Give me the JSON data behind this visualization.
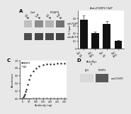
{
  "fig_bg": "#e8e8e8",
  "panel_bg": "#ffffff",
  "panel_A": {
    "label": "A",
    "lane_labels": [
      "IgG\nAb",
      "ChIP\nAb",
      "IgG\nAb",
      "ChIP\nAb"
    ],
    "group_label_left": "Ctrl",
    "group_label_right": "FOXP3",
    "band1_label": "anti-FOXP3",
    "band2_label": "anti-ACTIN",
    "row1_alphas": [
      0.25,
      0.45,
      0.3,
      0.55
    ],
    "row2_alphas": [
      0.7,
      0.72,
      0.71,
      0.73
    ]
  },
  "panel_B": {
    "label": "B",
    "title": "Anti-FOXP3 ChIP",
    "values": [
      0.38,
      0.2,
      0.32,
      0.1
    ],
    "errors": [
      0.05,
      0.02,
      0.04,
      0.01
    ],
    "bar_color": "#111111",
    "ylabel": "% Input",
    "xtick_labels": [
      "Ctrl/\nIgG",
      "Ctrl/\nFXP3",
      "Mut/\nIgG",
      "Mut/\nFXP3"
    ],
    "ylim": [
      0,
      0.5
    ]
  },
  "panel_C": {
    "label": "C",
    "foxp3_x": [
      0,
      5,
      10,
      15,
      20,
      25,
      30,
      40,
      50,
      60,
      80,
      100,
      120,
      150,
      175,
      200,
      225,
      250,
      275,
      300
    ],
    "foxp3_y": [
      0.01,
      0.02,
      0.04,
      0.07,
      0.12,
      0.18,
      0.25,
      0.38,
      0.5,
      0.6,
      0.72,
      0.8,
      0.85,
      0.88,
      0.9,
      0.91,
      0.91,
      0.92,
      0.92,
      0.92
    ],
    "igg_x": [
      0,
      5,
      10,
      15,
      20,
      25,
      30,
      40,
      50,
      60,
      80,
      100,
      120,
      150,
      175,
      200,
      225,
      250,
      275,
      300
    ],
    "igg_y": [
      0.01,
      0.01,
      0.01,
      0.01,
      0.01,
      0.01,
      0.01,
      0.01,
      0.01,
      0.01,
      0.02,
      0.02,
      0.02,
      0.02,
      0.02,
      0.02,
      0.02,
      0.02,
      0.02,
      0.02
    ],
    "color_foxp3": "#222222",
    "color_igg": "#aaaaaa",
    "label_foxp3": "FOXP3",
    "label_igg": "IgG",
    "xlabel": "Antibody (ng)",
    "ylabel": "Absorbance"
  },
  "panel_D": {
    "label": "D",
    "lane_labels": [
      "IgG",
      "FOXP3"
    ],
    "band_label": "anti-FOXP3",
    "title": "Anti-Myc\nIP",
    "band_alphas": [
      0.15,
      0.65
    ]
  }
}
